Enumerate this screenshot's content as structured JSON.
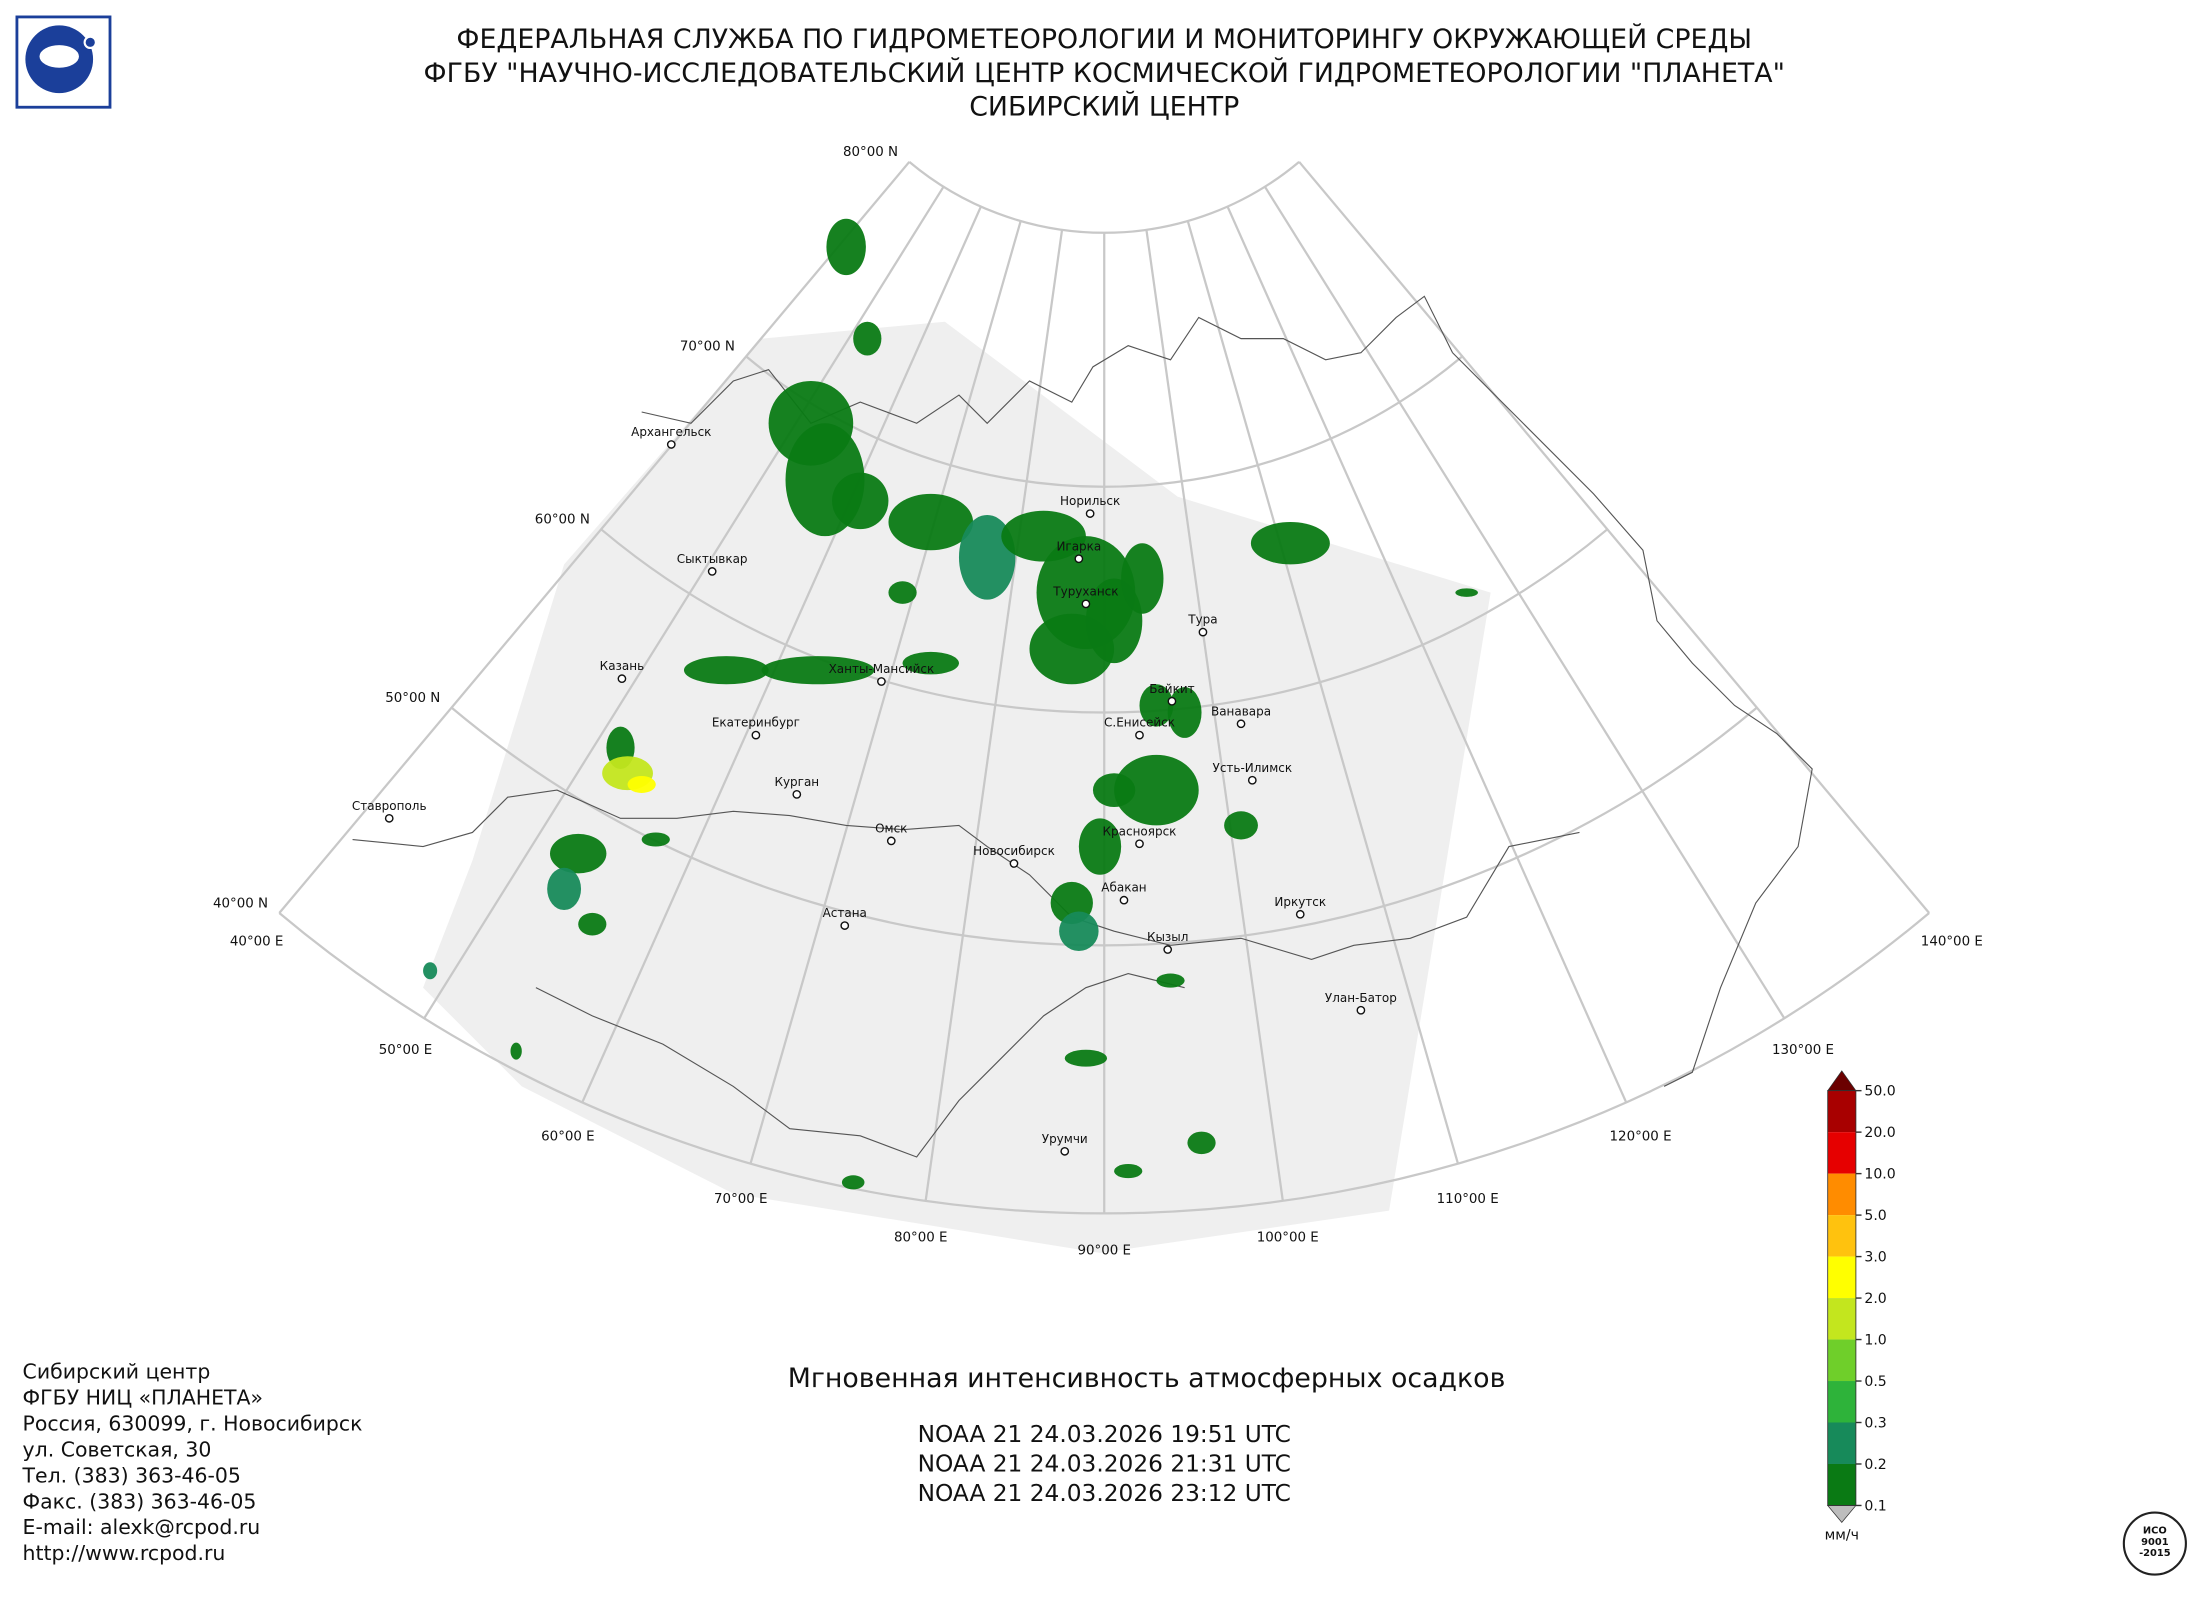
{
  "header": {
    "lines": [
      "ФЕДЕРАЛЬНАЯ СЛУЖБА ПО ГИДРОМЕТЕОРОЛОГИИ И МОНИТОРИНГУ ОКРУЖАЮЩЕЙ СРЕДЫ",
      "ФГБУ \"НАУЧНО-ИССЛЕДОВАТЕЛЬСКИЙ ЦЕНТР КОСМИЧЕСКОЙ ГИДРОМЕТЕОРОЛОГИИ \"ПЛАНЕТА\"",
      "СИБИРСКИЙ ЦЕНТР"
    ]
  },
  "map": {
    "lat_labels": [
      "80°00 N",
      "70°00 N",
      "60°00 N",
      "50°00 N",
      "40°00 N"
    ],
    "lon_labels": [
      "40°00 E",
      "50°00 E",
      "60°00 E",
      "70°00 E",
      "80°00 E",
      "90°00 E",
      "100°00 E",
      "110°00 E",
      "120°00 E",
      "130°00 E",
      "140°00 E"
    ],
    "cities": [
      "Архангельск",
      "Сыктывкар",
      "Казань",
      "Екатеринбург",
      "Ханты-Мансийск",
      "Курган",
      "Ставрополь",
      "Омск",
      "Астана",
      "Новосибирск",
      "Норильск",
      "Игарка",
      "Туруханск",
      "Тура",
      "Байкит",
      "Ванавара",
      "С.Енисейск",
      "Усть-Илимск",
      "Красноярск",
      "Абакан",
      "Иркутск",
      "Кызыл",
      "Улан-Батор",
      "Урумчи"
    ]
  },
  "legend": {
    "labels": [
      "50.0",
      "20.0",
      "10.0",
      "5.0",
      "3.0",
      "2.0",
      "1.0",
      "0.5",
      "0.3",
      "0.2",
      "0.1"
    ],
    "colors": [
      "#a80000",
      "#e60000",
      "#ff8c00",
      "#ffc20e",
      "#ffff00",
      "#c3e61e",
      "#6fcf2a",
      "#2eb33a",
      "#178a5a",
      "#0a7a14"
    ],
    "over_color": "#6b0000",
    "under_color": "#bdbdbd",
    "unit": "мм/ч"
  },
  "product": {
    "title": "Мгновенная интенсивность атмосферных осадков",
    "passes": [
      "NOAA 21 24.03.2026  19:51 UTC",
      "NOAA 21 24.03.2026  21:31 UTC",
      "NOAA 21 24.03.2026  23:12 UTC"
    ]
  },
  "footer": {
    "lines": [
      "Сибирский центр",
      "ФГБУ НИЦ «ПЛАНЕТА»",
      "Россия, 630099, г. Новосибирск",
      "ул. Советская, 30",
      "Тел. (383) 363-46-05",
      "Факс. (383) 363-46-05",
      "E-mail: alexk@rcpod.ru",
      "http://www.rcpod.ru"
    ]
  },
  "certificate": {
    "lines": [
      "ИСО",
      "9001",
      "-2015"
    ]
  }
}
